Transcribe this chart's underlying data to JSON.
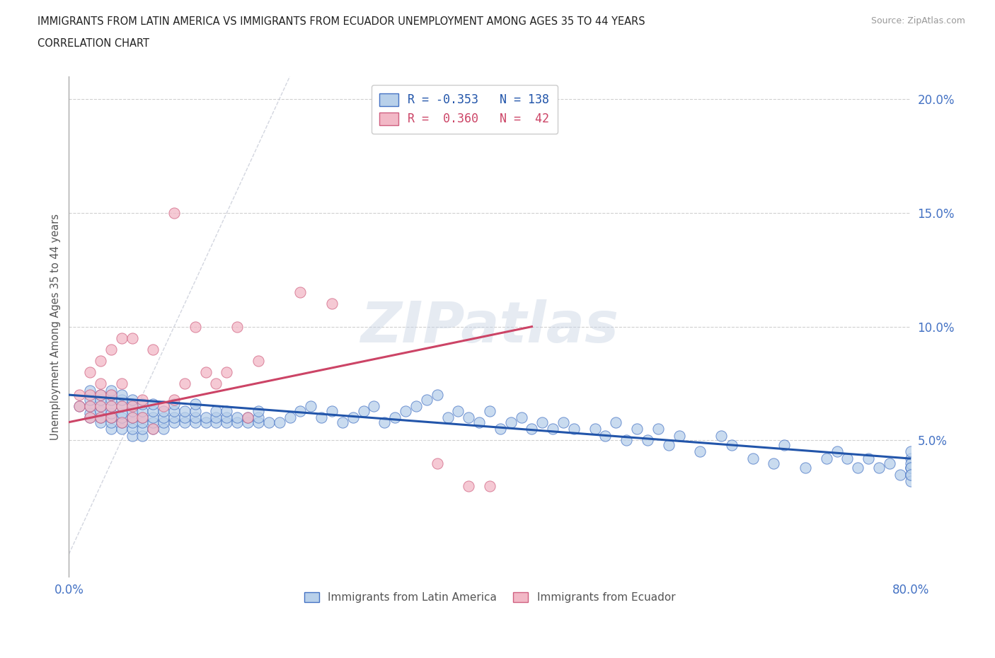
{
  "title_line1": "IMMIGRANTS FROM LATIN AMERICA VS IMMIGRANTS FROM ECUADOR UNEMPLOYMENT AMONG AGES 35 TO 44 YEARS",
  "title_line2": "CORRELATION CHART",
  "source_text": "Source: ZipAtlas.com",
  "ylabel": "Unemployment Among Ages 35 to 44 years",
  "xlim": [
    0.0,
    0.8
  ],
  "ylim": [
    -0.01,
    0.21
  ],
  "yticks": [
    0.05,
    0.1,
    0.15,
    0.2
  ],
  "ytick_labels": [
    "5.0%",
    "10.0%",
    "15.0%",
    "20.0%"
  ],
  "xticks": [
    0.0,
    0.1,
    0.2,
    0.3,
    0.4,
    0.5,
    0.6,
    0.7,
    0.8
  ],
  "xtick_labels": [
    "0.0%",
    "",
    "",
    "",
    "",
    "",
    "",
    "",
    "80.0%"
  ],
  "blue_fill": "#b8d0ea",
  "blue_edge": "#4472c4",
  "pink_fill": "#f2b8c6",
  "pink_edge": "#d06080",
  "blue_line_color": "#2255aa",
  "pink_line_color": "#cc4466",
  "diag_line_color": "#c8ccd8",
  "watermark": "ZIPatlas",
  "background_color": "#ffffff",
  "grid_color": "#d0d0d0",
  "axis_color": "#aaaaaa",
  "title_color": "#222222",
  "tick_color": "#4472c4",
  "legend_blue_label": "R = -0.353   N = 138",
  "legend_pink_label": "R =  0.360   N =  42",
  "legend_bottom_labels": [
    "Immigrants from Latin America",
    "Immigrants from Ecuador"
  ],
  "blue_scatter_x": [
    0.01,
    0.02,
    0.02,
    0.02,
    0.02,
    0.02,
    0.03,
    0.03,
    0.03,
    0.03,
    0.03,
    0.03,
    0.04,
    0.04,
    0.04,
    0.04,
    0.04,
    0.04,
    0.04,
    0.04,
    0.05,
    0.05,
    0.05,
    0.05,
    0.05,
    0.05,
    0.05,
    0.06,
    0.06,
    0.06,
    0.06,
    0.06,
    0.06,
    0.06,
    0.07,
    0.07,
    0.07,
    0.07,
    0.07,
    0.07,
    0.08,
    0.08,
    0.08,
    0.08,
    0.08,
    0.09,
    0.09,
    0.09,
    0.09,
    0.1,
    0.1,
    0.1,
    0.1,
    0.11,
    0.11,
    0.11,
    0.12,
    0.12,
    0.12,
    0.12,
    0.13,
    0.13,
    0.14,
    0.14,
    0.14,
    0.15,
    0.15,
    0.15,
    0.16,
    0.16,
    0.17,
    0.17,
    0.18,
    0.18,
    0.18,
    0.19,
    0.2,
    0.21,
    0.22,
    0.23,
    0.24,
    0.25,
    0.26,
    0.27,
    0.28,
    0.29,
    0.3,
    0.31,
    0.32,
    0.33,
    0.34,
    0.35,
    0.36,
    0.37,
    0.38,
    0.39,
    0.4,
    0.41,
    0.42,
    0.43,
    0.44,
    0.45,
    0.46,
    0.47,
    0.48,
    0.5,
    0.51,
    0.52,
    0.53,
    0.54,
    0.55,
    0.56,
    0.57,
    0.58,
    0.6,
    0.62,
    0.63,
    0.65,
    0.67,
    0.68,
    0.7,
    0.72,
    0.73,
    0.74,
    0.75,
    0.76,
    0.77,
    0.78,
    0.79,
    0.8,
    0.8,
    0.8,
    0.8,
    0.8,
    0.8,
    0.8,
    0.8,
    0.8
  ],
  "blue_scatter_y": [
    0.065,
    0.06,
    0.062,
    0.065,
    0.068,
    0.072,
    0.058,
    0.06,
    0.063,
    0.065,
    0.068,
    0.07,
    0.055,
    0.058,
    0.06,
    0.062,
    0.065,
    0.068,
    0.07,
    0.072,
    0.055,
    0.058,
    0.06,
    0.062,
    0.065,
    0.068,
    0.07,
    0.052,
    0.055,
    0.058,
    0.06,
    0.063,
    0.066,
    0.068,
    0.052,
    0.055,
    0.058,
    0.06,
    0.063,
    0.066,
    0.055,
    0.058,
    0.06,
    0.063,
    0.066,
    0.055,
    0.058,
    0.06,
    0.063,
    0.058,
    0.06,
    0.063,
    0.066,
    0.058,
    0.06,
    0.063,
    0.058,
    0.06,
    0.063,
    0.066,
    0.058,
    0.06,
    0.058,
    0.06,
    0.063,
    0.058,
    0.06,
    0.063,
    0.058,
    0.06,
    0.058,
    0.06,
    0.058,
    0.06,
    0.063,
    0.058,
    0.058,
    0.06,
    0.063,
    0.065,
    0.06,
    0.063,
    0.058,
    0.06,
    0.063,
    0.065,
    0.058,
    0.06,
    0.063,
    0.065,
    0.068,
    0.07,
    0.06,
    0.063,
    0.06,
    0.058,
    0.063,
    0.055,
    0.058,
    0.06,
    0.055,
    0.058,
    0.055,
    0.058,
    0.055,
    0.055,
    0.052,
    0.058,
    0.05,
    0.055,
    0.05,
    0.055,
    0.048,
    0.052,
    0.045,
    0.052,
    0.048,
    0.042,
    0.04,
    0.048,
    0.038,
    0.042,
    0.045,
    0.042,
    0.038,
    0.042,
    0.038,
    0.04,
    0.035,
    0.038,
    0.042,
    0.045,
    0.038,
    0.04,
    0.035,
    0.038,
    0.032,
    0.035
  ],
  "pink_scatter_x": [
    0.01,
    0.01,
    0.02,
    0.02,
    0.02,
    0.02,
    0.03,
    0.03,
    0.03,
    0.03,
    0.03,
    0.04,
    0.04,
    0.04,
    0.04,
    0.05,
    0.05,
    0.05,
    0.05,
    0.06,
    0.06,
    0.06,
    0.07,
    0.07,
    0.08,
    0.08,
    0.09,
    0.1,
    0.1,
    0.11,
    0.12,
    0.13,
    0.14,
    0.15,
    0.16,
    0.17,
    0.18,
    0.22,
    0.25,
    0.35,
    0.38,
    0.4
  ],
  "pink_scatter_y": [
    0.065,
    0.07,
    0.06,
    0.065,
    0.07,
    0.08,
    0.06,
    0.065,
    0.07,
    0.075,
    0.085,
    0.06,
    0.065,
    0.07,
    0.09,
    0.058,
    0.065,
    0.075,
    0.095,
    0.06,
    0.065,
    0.095,
    0.06,
    0.068,
    0.055,
    0.09,
    0.065,
    0.068,
    0.15,
    0.075,
    0.1,
    0.08,
    0.075,
    0.08,
    0.1,
    0.06,
    0.085,
    0.115,
    0.11,
    0.04,
    0.03,
    0.03
  ],
  "blue_trend_x": [
    0.0,
    0.8
  ],
  "blue_trend_y": [
    0.07,
    0.042
  ],
  "pink_trend_x": [
    0.0,
    0.44
  ],
  "pink_trend_y": [
    0.058,
    0.1
  ],
  "diag_trend_x": [
    0.0,
    0.21
  ],
  "diag_trend_y": [
    0.0,
    0.21
  ]
}
